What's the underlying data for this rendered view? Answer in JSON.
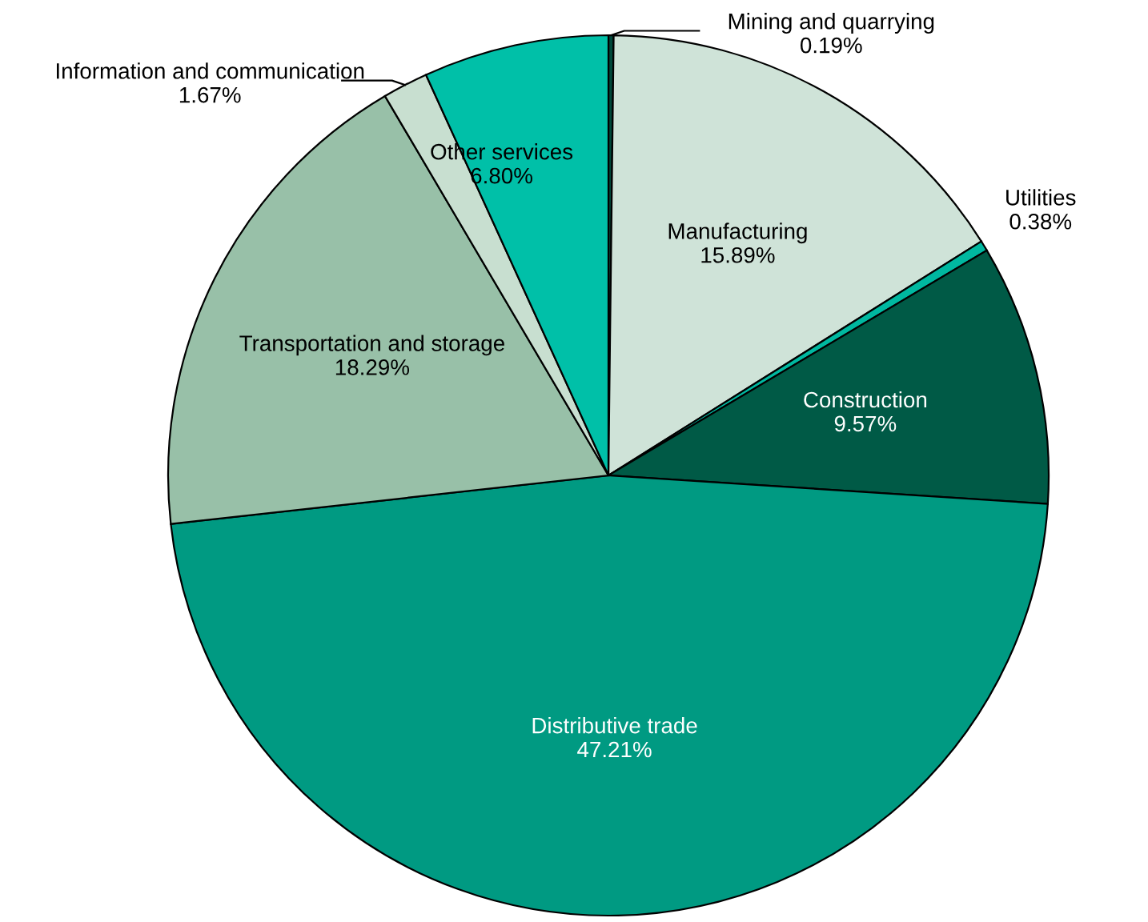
{
  "chart_data": {
    "type": "pie",
    "categories": [
      "Mining and quarrying",
      "Manufacturing",
      "Utilities",
      "Construction",
      "Distributive trade",
      "Transportation and storage",
      "Information and communication",
      "Other services"
    ],
    "values": [
      0.19,
      15.89,
      0.38,
      9.57,
      47.21,
      18.29,
      1.67,
      6.8
    ],
    "colors": [
      "#00483a",
      "#cfe3d8",
      "#00b8a0",
      "#005a46",
      "#009a82",
      "#98c0a8",
      "#c8dfd0",
      "#00c0a8"
    ],
    "value_labels": [
      "0.19%",
      "15.89%",
      "0.38%",
      "9.57%",
      "47.21%",
      "18.29%",
      "1.67%",
      "6.80%"
    ]
  }
}
